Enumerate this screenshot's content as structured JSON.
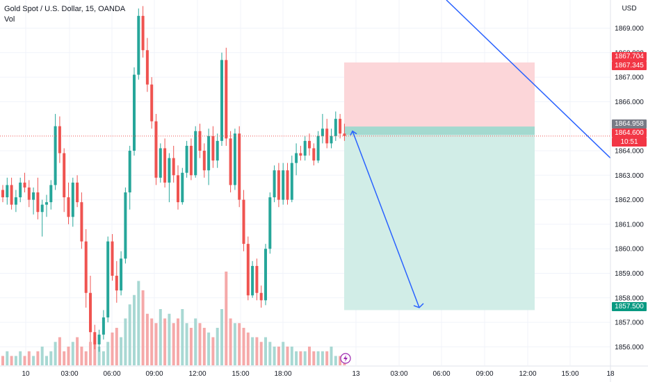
{
  "header": {
    "symbol_line": "Gold Spot / U.S. Dollar, 15, OANDA",
    "indicator": "Vol"
  },
  "colors": {
    "up": "#26a69a",
    "down": "#ef5350",
    "up_vol": "#a8d8d3",
    "down_vol": "#f5a9a9",
    "stop_zone": "#fcd6d9",
    "target_zone": "#d1ede7",
    "drawing": "#2962ff",
    "grid": "#f0f3fa",
    "current_price_line": "#ef5350"
  },
  "chart_data": {
    "type": "candlestick",
    "instrument": "XAUUSD",
    "timeframe": "15",
    "currency": "USD",
    "y_range": [
      1855.6,
      1870.0
    ],
    "y_ticks": [
      "1856.000",
      "1857.000",
      "1858.000",
      "1859.000",
      "1860.000",
      "1861.000",
      "1862.000",
      "1863.000",
      "1864.000",
      "1866.000",
      "1867.000",
      "1868.000",
      "1869.000"
    ],
    "x_ticks": [
      "10",
      "03:00",
      "06:00",
      "09:00",
      "12:00",
      "15:00",
      "18:00",
      "13",
      "03:00",
      "06:00",
      "09:00",
      "12:00",
      "15:00",
      "18"
    ],
    "candles_ohlc": [
      [
        1862.4,
        1862.6,
        1861.9,
        1862.1
      ],
      [
        1862.1,
        1862.9,
        1861.8,
        1862.6
      ],
      [
        1862.6,
        1862.9,
        1861.6,
        1861.8
      ],
      [
        1861.8,
        1862.4,
        1861.5,
        1862.1
      ],
      [
        1862.1,
        1862.9,
        1861.9,
        1862.7
      ],
      [
        1862.7,
        1863.1,
        1862.3,
        1862.5
      ],
      [
        1862.5,
        1862.8,
        1861.7,
        1862.0
      ],
      [
        1862.0,
        1862.5,
        1861.4,
        1862.3
      ],
      [
        1862.3,
        1862.9,
        1861.2,
        1861.5
      ],
      [
        1861.5,
        1862.0,
        1860.5,
        1861.8
      ],
      [
        1861.8,
        1862.2,
        1861.3,
        1861.9
      ],
      [
        1861.9,
        1862.8,
        1861.6,
        1862.6
      ],
      [
        1862.6,
        1865.5,
        1862.4,
        1865.0
      ],
      [
        1865.0,
        1865.4,
        1863.5,
        1863.9
      ],
      [
        1863.9,
        1864.1,
        1861.5,
        1862.1
      ],
      [
        1862.1,
        1862.7,
        1861.0,
        1861.3
      ],
      [
        1861.3,
        1862.9,
        1860.9,
        1862.7
      ],
      [
        1862.7,
        1863.0,
        1861.7,
        1861.9
      ],
      [
        1861.9,
        1862.3,
        1860.0,
        1860.3
      ],
      [
        1860.3,
        1860.8,
        1857.6,
        1858.2
      ],
      [
        1858.2,
        1858.9,
        1856.2,
        1856.6
      ],
      [
        1856.6,
        1856.9,
        1855.9,
        1856.1
      ],
      [
        1856.1,
        1856.7,
        1855.8,
        1856.5
      ],
      [
        1856.5,
        1857.5,
        1856.3,
        1857.2
      ],
      [
        1857.2,
        1860.5,
        1857.0,
        1860.3
      ],
      [
        1860.3,
        1860.6,
        1858.7,
        1858.9
      ],
      [
        1858.9,
        1859.5,
        1857.8,
        1858.3
      ],
      [
        1858.3,
        1859.9,
        1858.1,
        1859.6
      ],
      [
        1859.6,
        1862.5,
        1859.4,
        1862.3
      ],
      [
        1862.3,
        1864.2,
        1861.6,
        1864.0
      ],
      [
        1864.0,
        1867.4,
        1863.8,
        1867.1
      ],
      [
        1867.1,
        1869.8,
        1866.9,
        1869.5
      ],
      [
        1869.5,
        1869.9,
        1867.8,
        1868.1
      ],
      [
        1868.1,
        1868.6,
        1866.4,
        1866.7
      ],
      [
        1866.7,
        1867.0,
        1864.9,
        1865.2
      ],
      [
        1865.2,
        1865.5,
        1862.6,
        1862.9
      ],
      [
        1862.9,
        1864.3,
        1862.7,
        1864.1
      ],
      [
        1864.1,
        1864.5,
        1862.5,
        1862.7
      ],
      [
        1862.7,
        1863.9,
        1861.9,
        1863.7
      ],
      [
        1863.7,
        1864.2,
        1862.7,
        1863.0
      ],
      [
        1863.0,
        1863.4,
        1861.6,
        1861.9
      ],
      [
        1861.9,
        1863.3,
        1861.8,
        1863.1
      ],
      [
        1863.1,
        1864.4,
        1862.9,
        1864.2
      ],
      [
        1864.2,
        1864.5,
        1862.8,
        1863.0
      ],
      [
        1863.0,
        1865.0,
        1862.9,
        1864.8
      ],
      [
        1864.8,
        1865.1,
        1863.7,
        1864.0
      ],
      [
        1864.0,
        1864.3,
        1862.9,
        1863.2
      ],
      [
        1863.2,
        1864.9,
        1862.6,
        1864.6
      ],
      [
        1864.6,
        1865.0,
        1863.3,
        1863.6
      ],
      [
        1863.6,
        1864.7,
        1863.3,
        1864.4
      ],
      [
        1864.4,
        1868.0,
        1864.2,
        1867.7
      ],
      [
        1867.7,
        1868.2,
        1864.2,
        1864.5
      ],
      [
        1864.5,
        1864.8,
        1862.3,
        1862.6
      ],
      [
        1862.6,
        1864.9,
        1862.4,
        1864.7
      ],
      [
        1864.7,
        1865.0,
        1861.7,
        1862.0
      ],
      [
        1862.0,
        1862.4,
        1859.9,
        1860.2
      ],
      [
        1860.2,
        1860.5,
        1857.9,
        1858.1
      ],
      [
        1858.1,
        1859.5,
        1858.0,
        1859.3
      ],
      [
        1859.3,
        1859.6,
        1857.9,
        1858.2
      ],
      [
        1858.2,
        1858.5,
        1857.6,
        1857.9
      ],
      [
        1857.9,
        1860.2,
        1857.7,
        1860.0
      ],
      [
        1860.0,
        1862.3,
        1859.8,
        1862.1
      ],
      [
        1862.1,
        1863.4,
        1861.9,
        1863.2
      ],
      [
        1863.2,
        1863.5,
        1861.7,
        1862.0
      ],
      [
        1862.0,
        1863.5,
        1861.8,
        1863.2
      ],
      [
        1863.2,
        1863.5,
        1861.8,
        1862.0
      ],
      [
        1862.0,
        1863.8,
        1861.9,
        1863.5
      ],
      [
        1863.5,
        1864.3,
        1863.0,
        1863.9
      ],
      [
        1863.9,
        1864.2,
        1863.6,
        1863.8
      ],
      [
        1863.8,
        1864.6,
        1863.6,
        1864.4
      ],
      [
        1864.4,
        1864.7,
        1863.8,
        1864.1
      ],
      [
        1864.1,
        1864.3,
        1863.4,
        1863.6
      ],
      [
        1863.6,
        1864.8,
        1863.5,
        1864.6
      ],
      [
        1864.6,
        1865.5,
        1864.3,
        1864.9
      ],
      [
        1864.9,
        1865.3,
        1864.1,
        1864.3
      ],
      [
        1864.3,
        1864.9,
        1864.1,
        1864.6
      ],
      [
        1864.6,
        1865.6,
        1864.4,
        1865.3
      ],
      [
        1865.3,
        1865.5,
        1864.5,
        1864.7
      ],
      [
        1864.7,
        1865.1,
        1864.4,
        1864.6
      ]
    ],
    "volumes": [
      2,
      3,
      2,
      2,
      3,
      2,
      3,
      2,
      3,
      4,
      2,
      3,
      5,
      6,
      3,
      4,
      5,
      6,
      4,
      3,
      5,
      6,
      4,
      3,
      5,
      7,
      8,
      6,
      10,
      13,
      15,
      18,
      16,
      11,
      10,
      9,
      12,
      10,
      11,
      9,
      10,
      12,
      9,
      8,
      10,
      9,
      8,
      7,
      6,
      8,
      12,
      20,
      10,
      9,
      9,
      8,
      7,
      6,
      6,
      5,
      6,
      5,
      4,
      4,
      5,
      4,
      4,
      3,
      3,
      3,
      4,
      3,
      3,
      3,
      3,
      4,
      2,
      2,
      2
    ],
    "series": [
      {
        "name": "Vol"
      }
    ],
    "current_price": "1864.600",
    "countdown": "10:51",
    "position": {
      "side": "short",
      "entry": 1864.958,
      "stop": 1867.345,
      "target": 1857.5,
      "entry_label": "1864.958",
      "stop_label": "1867.345",
      "target_label": "1857.500",
      "upper_label": "1867.704"
    },
    "trendline": {
      "from_price": 1870.0,
      "to_price": 1863.9
    },
    "projection_arrow": {
      "from_price": 1864.8,
      "to_price": 1857.6
    }
  }
}
